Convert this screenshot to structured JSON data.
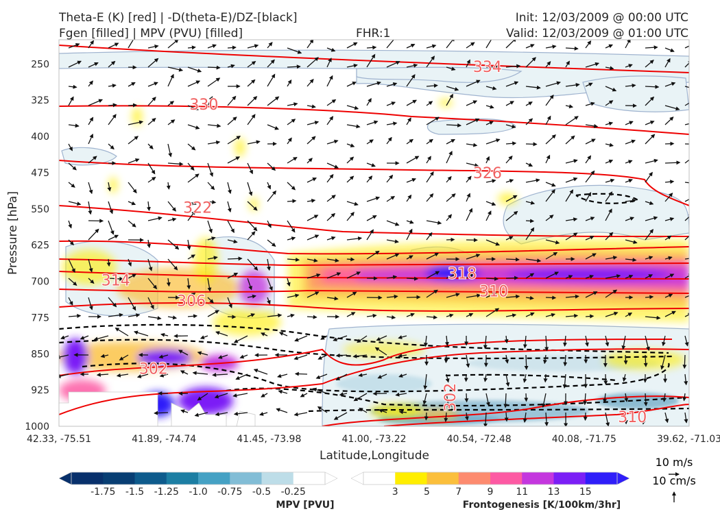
{
  "header": {
    "title_left_line1": "Theta-E (K) [red] | -D(theta-E)/DZ-[black]",
    "title_left_line2": "Fgen [filled] | MPV (PVU) [filled]",
    "fhr": "FHR:1",
    "init": "Init: 12/03/2009 @ 00:00 UTC",
    "valid": "Valid: 12/03/2009 @ 01:00 UTC"
  },
  "chart_data": {
    "type": "cross-section",
    "xlabel": "Latitude,Longitude",
    "ylabel": "Pressure [hPa]",
    "x_ticks": [
      "42.33, -75.51",
      "41.89, -74.74",
      "41.45, -73.98",
      "41.00, -73.22",
      "40.54, -72.48",
      "40.08, -71.75",
      "39.62, -71.03"
    ],
    "y_ticks": [
      250,
      325,
      400,
      475,
      550,
      625,
      700,
      775,
      850,
      925,
      1000
    ],
    "ylim": [
      1000,
      200
    ],
    "theta_e_contour_labels": [
      {
        "label": "334",
        "x_frac": 0.68,
        "p": 255
      },
      {
        "label": "330",
        "x_frac": 0.23,
        "p": 333
      },
      {
        "label": "326",
        "x_frac": 0.68,
        "p": 475
      },
      {
        "label": "322",
        "x_frac": 0.22,
        "p": 547
      },
      {
        "label": "318",
        "x_frac": 0.64,
        "p": 683
      },
      {
        "label": "314",
        "x_frac": 0.09,
        "p": 697
      },
      {
        "label": "310",
        "x_frac": 0.69,
        "p": 720
      },
      {
        "label": "306",
        "x_frac": 0.21,
        "p": 740
      },
      {
        "label": "302",
        "x_frac": 0.15,
        "p": 880
      },
      {
        "label": "302",
        "x_frac": 0.62,
        "p": 940
      },
      {
        "label": "310",
        "x_frac": 0.91,
        "p": 980
      }
    ],
    "mpv_colorbar": {
      "label": "MPV [PVU]",
      "ticks": [
        "-1.75",
        "-1.5",
        "-1.25",
        "-1.0",
        "-0.75",
        "-0.5",
        "-0.25"
      ],
      "colors": [
        "#08306b",
        "#083e73",
        "#0e5b8c",
        "#1c7ea3",
        "#45a1c4",
        "#82bdd6",
        "#bddde8",
        "#ffffff"
      ]
    },
    "fgen_colorbar": {
      "label": "Frontogenesis [K/100km/3hr]",
      "ticks": [
        "3",
        "5",
        "7",
        "9",
        "11",
        "13",
        "15"
      ],
      "colors": [
        "#ffffff",
        "#ffee00",
        "#fbbf3c",
        "#fd8b6f",
        "#fd5aa3",
        "#c437de",
        "#7b1ff6",
        "#2f1ef9"
      ]
    },
    "wind_key": {
      "horizontal": "10 m/s",
      "vertical": "10 cm/s"
    }
  }
}
